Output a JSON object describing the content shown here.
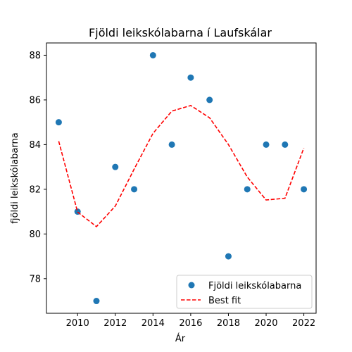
{
  "chart_data": {
    "type": "scatter",
    "title": "Fjöldi leikskólabarna í Laufskálar",
    "xlabel": "Ár",
    "ylabel": "fjöldi leikskólabarna",
    "xlim": [
      2008.35,
      2022.65
    ],
    "ylim": [
      76.45,
      88.55
    ],
    "xticks": [
      2010,
      2012,
      2014,
      2016,
      2018,
      2020,
      2022
    ],
    "yticks": [
      78,
      80,
      82,
      84,
      86,
      88
    ],
    "grid": false,
    "legend_position": "lower-right",
    "series": [
      {
        "name": "Fjöldi leikskólabarna",
        "kind": "scatter",
        "color": "#1f77b4",
        "x": [
          2009,
          2010,
          2011,
          2012,
          2013,
          2014,
          2015,
          2016,
          2017,
          2018,
          2019,
          2020,
          2021,
          2022
        ],
        "y": [
          85,
          81,
          77,
          83,
          82,
          88,
          84,
          87,
          86,
          79,
          82,
          84,
          84,
          82
        ]
      },
      {
        "name": "Best fit",
        "kind": "line",
        "style": "dashed",
        "color": "#ff0000",
        "x": [
          2009,
          2010,
          2011,
          2012,
          2013,
          2014,
          2015,
          2016,
          2017,
          2018,
          2019,
          2020,
          2021,
          2022
        ],
        "y": [
          84.15,
          80.98,
          80.33,
          81.25,
          82.9,
          84.5,
          85.5,
          85.75,
          85.2,
          84.0,
          82.55,
          81.52,
          81.6,
          83.85
        ]
      }
    ]
  }
}
